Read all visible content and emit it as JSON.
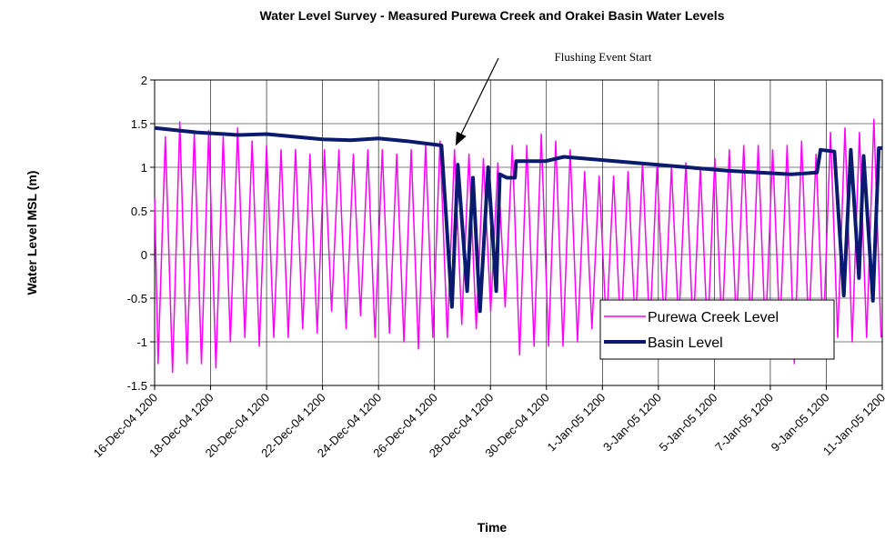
{
  "chart_data": {
    "type": "line",
    "title": "Water Level Survey - Measured Purewa Creek and Orakei Basin Water Levels",
    "x_label": "Time",
    "y_label": "Water Level MSL (m)",
    "annotation": "Flushing Event Start",
    "xlim": [
      "2004-12-16T12:00",
      "2005-01-11T12:00"
    ],
    "xticks": [
      {
        "value": "2004-12-16T12:00",
        "label": "16-Dec-04 1200"
      },
      {
        "value": "2004-12-18T12:00",
        "label": "18-Dec-04 1200"
      },
      {
        "value": "2004-12-20T12:00",
        "label": "20-Dec-04 1200"
      },
      {
        "value": "2004-12-22T12:00",
        "label": "22-Dec-04 1200"
      },
      {
        "value": "2004-12-24T12:00",
        "label": "24-Dec-04 1200"
      },
      {
        "value": "2004-12-26T12:00",
        "label": "26-Dec-04 1200"
      },
      {
        "value": "2004-12-28T12:00",
        "label": "28-Dec-04 1200"
      },
      {
        "value": "2004-12-30T12:00",
        "label": "30-Dec-04 1200"
      },
      {
        "value": "2005-01-01T12:00",
        "label": "1-Jan-05 1200"
      },
      {
        "value": "2005-01-03T12:00",
        "label": "3-Jan-05 1200"
      },
      {
        "value": "2005-01-05T12:00",
        "label": "5-Jan-05 1200"
      },
      {
        "value": "2005-01-07T12:00",
        "label": "7-Jan-05 1200"
      },
      {
        "value": "2005-01-09T12:00",
        "label": "9-Jan-05 1200"
      },
      {
        "value": "2005-01-11T12:00",
        "label": "11-Jan-05 1200"
      }
    ],
    "ylim": [
      -1.5,
      2
    ],
    "yticks": [
      -1.5,
      -1,
      -0.5,
      0,
      0.5,
      1,
      1.5,
      2
    ],
    "grid": true,
    "legend": "lower right",
    "series": [
      {
        "name": "Purewa Creek Level",
        "color": "#ff00ff",
        "width": 1.5,
        "x": [
          "2004-12-16T12:00",
          "2004-12-16T15:00",
          "2004-12-16T21:12",
          "2004-12-17T03:24",
          "2004-12-17T09:36",
          "2004-12-17T15:48",
          "2004-12-17T22:00",
          "2004-12-18T04:12",
          "2004-12-18T10:24",
          "2004-12-18T16:36",
          "2004-12-18T22:48",
          "2004-12-19T05:00",
          "2004-12-19T11:12",
          "2004-12-19T17:24",
          "2004-12-19T23:36",
          "2004-12-20T05:48",
          "2004-12-20T12:00",
          "2004-12-20T18:12",
          "2004-12-21T00:24",
          "2004-12-21T06:36",
          "2004-12-21T12:48",
          "2004-12-21T19:00",
          "2004-12-22T01:12",
          "2004-12-22T07:24",
          "2004-12-22T13:36",
          "2004-12-22T19:48",
          "2004-12-23T02:00",
          "2004-12-23T08:12",
          "2004-12-23T14:24",
          "2004-12-23T20:36",
          "2004-12-24T02:48",
          "2004-12-24T09:00",
          "2004-12-24T15:12",
          "2004-12-24T21:24",
          "2004-12-25T03:36",
          "2004-12-25T09:48",
          "2004-12-25T16:00",
          "2004-12-25T22:12",
          "2004-12-26T04:24",
          "2004-12-26T10:36",
          "2004-12-26T16:48",
          "2004-12-26T23:00",
          "2004-12-27T05:12",
          "2004-12-27T11:24",
          "2004-12-27T17:36",
          "2004-12-27T23:48",
          "2004-12-28T06:00",
          "2004-12-28T12:12",
          "2004-12-28T18:24",
          "2004-12-29T00:36",
          "2004-12-29T06:48",
          "2004-12-29T13:00",
          "2004-12-29T19:12",
          "2004-12-30T01:24",
          "2004-12-30T07:36",
          "2004-12-30T13:48",
          "2004-12-30T20:00",
          "2004-12-31T02:12",
          "2004-12-31T08:24",
          "2004-12-31T14:36",
          "2004-12-31T20:48",
          "2005-01-01T03:00",
          "2005-01-01T09:12",
          "2005-01-01T15:24",
          "2005-01-01T21:36",
          "2005-01-02T03:48",
          "2005-01-02T10:00",
          "2005-01-02T16:12",
          "2005-01-02T22:24",
          "2005-01-03T04:36",
          "2005-01-03T10:48",
          "2005-01-03T17:00",
          "2005-01-03T23:12",
          "2005-01-04T05:24",
          "2005-01-04T11:36",
          "2005-01-04T17:48",
          "2005-01-05T00:00",
          "2005-01-05T06:12",
          "2005-01-05T12:24",
          "2005-01-05T18:36",
          "2005-01-06T00:48",
          "2005-01-06T07:00",
          "2005-01-06T13:12",
          "2005-01-06T19:24",
          "2005-01-07T01:36",
          "2005-01-07T07:48",
          "2005-01-07T14:00",
          "2005-01-07T20:12",
          "2005-01-08T02:24",
          "2005-01-08T08:36",
          "2005-01-08T14:48",
          "2005-01-08T21:00",
          "2005-01-09T03:12",
          "2005-01-09T09:24",
          "2005-01-09T15:36",
          "2005-01-09T21:48",
          "2005-01-10T04:00",
          "2005-01-10T10:12",
          "2005-01-10T16:24",
          "2005-01-10T22:36",
          "2005-01-11T04:48",
          "2005-01-11T11:00"
        ],
        "values": [
          0.65,
          -1.25,
          1.35,
          -1.35,
          1.52,
          -1.25,
          1.4,
          -1.25,
          1.42,
          -1.3,
          1.35,
          -1.0,
          1.45,
          -0.95,
          1.3,
          -1.05,
          1.25,
          -0.95,
          1.2,
          -0.95,
          1.2,
          -0.85,
          1.15,
          -0.9,
          1.2,
          -0.65,
          1.2,
          -0.85,
          1.15,
          -0.7,
          1.2,
          -0.95,
          1.2,
          -0.9,
          1.15,
          -1.0,
          1.2,
          -1.08,
          1.25,
          -0.95,
          1.3,
          -0.95,
          1.2,
          -0.8,
          1.15,
          -0.85,
          1.1,
          -0.65,
          1.05,
          -0.6,
          1.25,
          -1.15,
          1.25,
          -1.05,
          1.38,
          -1.05,
          1.3,
          -1.05,
          1.2,
          -1.0,
          0.95,
          -0.85,
          0.9,
          -0.85,
          0.9,
          -0.95,
          0.95,
          -0.85,
          1.05,
          -0.9,
          1.0,
          -0.85,
          1.0,
          -0.8,
          1.05,
          -0.9,
          1.0,
          -0.95,
          1.1,
          -0.9,
          1.2,
          -0.85,
          1.25,
          -0.9,
          1.25,
          -0.95,
          1.2,
          -0.9,
          1.25,
          -1.25,
          1.3,
          -0.9,
          1.15,
          -0.95,
          1.4,
          -0.95,
          1.45,
          -1.0,
          1.4,
          -0.95,
          1.55,
          -0.95
        ]
      },
      {
        "name": "Basin Level",
        "color": "#0a1a6e",
        "width": 4,
        "x": [
          "2004-12-16T12:00",
          "2004-12-18T00:00",
          "2004-12-19T12:00",
          "2004-12-20T12:00",
          "2004-12-22T12:00",
          "2004-12-23T12:00",
          "2004-12-24T12:00",
          "2004-12-25T12:00",
          "2004-12-26T18:00",
          "2004-12-27T03:00",
          "2004-12-27T08:00",
          "2004-12-27T16:00",
          "2004-12-27T21:00",
          "2004-12-28T03:00",
          "2004-12-28T10:00",
          "2004-12-28T17:00",
          "2004-12-28T20:00",
          "2004-12-29T02:00",
          "2004-12-29T09:00",
          "2004-12-29T10:00",
          "2004-12-30T11:00",
          "2004-12-31T03:00",
          "2005-01-02T17:00",
          "2005-01-05T23:00",
          "2005-01-08T06:00",
          "2005-01-09T04:00",
          "2005-01-09T07:00",
          "2005-01-09T19:00",
          "2005-01-10T03:00",
          "2005-01-10T09:00",
          "2005-01-10T16:00",
          "2005-01-10T20:00",
          "2005-01-11T04:00",
          "2005-01-11T09:00",
          "2005-01-11T12:00"
        ],
        "values": [
          1.45,
          1.4,
          1.37,
          1.38,
          1.32,
          1.31,
          1.33,
          1.3,
          1.25,
          -0.6,
          1.03,
          -0.42,
          0.88,
          -0.65,
          1.0,
          -0.42,
          0.92,
          0.88,
          0.88,
          1.07,
          1.07,
          1.12,
          1.05,
          0.96,
          0.92,
          0.94,
          1.2,
          1.18,
          -0.47,
          1.2,
          -0.27,
          1.13,
          -0.53,
          1.22,
          1.22
        ]
      }
    ]
  }
}
